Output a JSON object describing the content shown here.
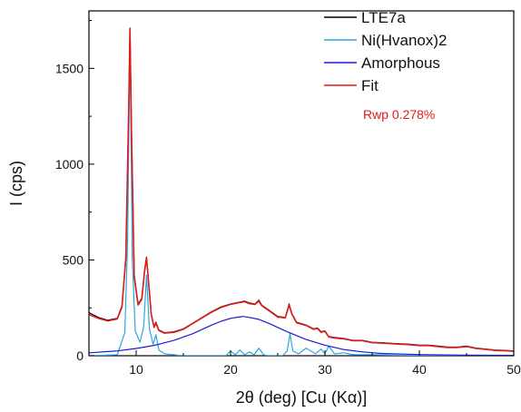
{
  "chart_data": {
    "type": "line",
    "xlabel": "2θ (deg) [Cu (Kα)]",
    "ylabel": "I (cps)",
    "xlim": [
      5,
      50
    ],
    "ylim": [
      0,
      1800
    ],
    "x_ticks": [
      10,
      20,
      30,
      40,
      50
    ],
    "x_tick_labels": [
      "10",
      "20",
      "30",
      "40",
      "50"
    ],
    "y_ticks": [
      0,
      500,
      1000,
      1500
    ],
    "y_tick_labels": [
      "0",
      "500",
      "1000",
      "1500"
    ],
    "grid": false,
    "legend_position": "top-right",
    "annotation": "Rwp 0.278%",
    "series": [
      {
        "name": "LTE7a",
        "color": "#000000",
        "x": [
          5,
          6,
          7,
          8,
          8.5,
          8.9,
          9.2,
          9.35,
          9.5,
          9.8,
          10.2,
          10.6,
          10.9,
          11.1,
          11.3,
          11.6,
          11.9,
          12.1,
          12.4,
          13,
          14,
          15,
          16,
          17,
          18,
          19,
          20,
          21,
          21.5,
          22,
          22.6,
          23,
          23.3,
          24,
          25,
          25.8,
          26.2,
          26.5,
          27,
          28,
          28.8,
          29.2,
          29.6,
          30,
          30.4,
          31,
          32,
          33,
          34,
          35,
          36,
          37,
          38,
          39,
          40,
          41,
          42,
          43,
          44,
          45,
          46,
          47,
          48,
          49,
          50
        ],
        "y": [
          225,
          200,
          185,
          195,
          260,
          500,
          1250,
          1710,
          1200,
          420,
          270,
          300,
          450,
          515,
          400,
          220,
          150,
          175,
          135,
          120,
          125,
          140,
          170,
          200,
          230,
          255,
          270,
          280,
          285,
          275,
          270,
          290,
          265,
          240,
          205,
          200,
          270,
          220,
          175,
          160,
          140,
          145,
          125,
          130,
          100,
          95,
          90,
          80,
          80,
          70,
          68,
          65,
          62,
          60,
          55,
          55,
          50,
          45,
          45,
          50,
          40,
          35,
          30,
          28,
          25
        ]
      },
      {
        "name": "Ni(Hvanox)2",
        "color": "#2aa7e0",
        "x": [
          5,
          8,
          8.8,
          9.1,
          9.35,
          9.6,
          9.9,
          10.4,
          10.8,
          11.1,
          11.4,
          11.8,
          12.1,
          12.4,
          13,
          15,
          19.5,
          20,
          20.5,
          21,
          21.5,
          22,
          22.5,
          23,
          23.5,
          24,
          25.5,
          26,
          26.3,
          26.6,
          27.2,
          28,
          29,
          29.6,
          30,
          30.4,
          31,
          32,
          33,
          35,
          40,
          45,
          50
        ],
        "y": [
          0,
          5,
          120,
          600,
          1650,
          500,
          130,
          70,
          150,
          420,
          140,
          60,
          110,
          30,
          10,
          0,
          0,
          25,
          5,
          30,
          5,
          20,
          5,
          40,
          5,
          0,
          0,
          25,
          115,
          25,
          10,
          40,
          10,
          35,
          10,
          50,
          10,
          15,
          5,
          5,
          0,
          0,
          0
        ]
      },
      {
        "name": "Amorphous",
        "color": "#1a1ad6",
        "x": [
          5,
          8,
          10,
          12,
          14,
          16,
          18,
          19,
          20,
          21,
          21.3,
          22,
          23,
          24,
          26,
          28,
          30,
          32,
          34,
          36,
          40,
          45,
          50
        ],
        "y": [
          15,
          25,
          38,
          55,
          80,
          115,
          160,
          180,
          195,
          203,
          205,
          200,
          190,
          170,
          125,
          85,
          55,
          32,
          20,
          12,
          6,
          3,
          2
        ]
      },
      {
        "name": "Fit",
        "color": "#e01b1b",
        "x": [
          5,
          6,
          7,
          8,
          8.5,
          8.9,
          9.2,
          9.35,
          9.5,
          9.8,
          10.2,
          10.6,
          10.9,
          11.1,
          11.3,
          11.6,
          11.9,
          12.1,
          12.4,
          13,
          14,
          15,
          16,
          17,
          18,
          19,
          20,
          21,
          21.5,
          22,
          22.6,
          23,
          23.3,
          24,
          25,
          25.8,
          26.2,
          26.5,
          27,
          28,
          28.8,
          29.2,
          29.6,
          30,
          30.4,
          31,
          32,
          33,
          34,
          35,
          36,
          37,
          38,
          39,
          40,
          41,
          42,
          43,
          44,
          45,
          46,
          47,
          48,
          49,
          50
        ],
        "y": [
          215,
          195,
          182,
          192,
          255,
          510,
          1260,
          1705,
          1190,
          410,
          265,
          295,
          445,
          510,
          395,
          215,
          148,
          170,
          132,
          118,
          122,
          138,
          168,
          198,
          228,
          252,
          268,
          278,
          282,
          272,
          268,
          285,
          262,
          238,
          202,
          198,
          265,
          218,
          172,
          158,
          138,
          142,
          122,
          128,
          98,
          93,
          88,
          78,
          78,
          68,
          66,
          63,
          60,
          58,
          53,
          53,
          48,
          43,
          43,
          48,
          38,
          33,
          28,
          26,
          23
        ]
      }
    ]
  }
}
